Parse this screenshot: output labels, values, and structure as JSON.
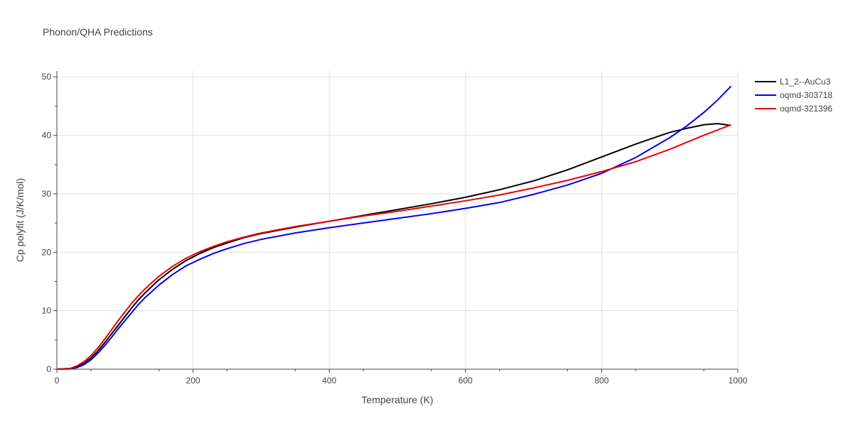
{
  "chart_data": {
    "type": "line",
    "title": "Phonon/QHA Predictions",
    "xlabel": "Temperature (K)",
    "ylabel": "Cp polyfit (J/K/mol)",
    "xlim": [
      0,
      1000
    ],
    "ylim": [
      0,
      51
    ],
    "xticks": [
      0,
      200,
      400,
      600,
      800,
      1000
    ],
    "yticks": [
      0,
      10,
      20,
      30,
      40,
      50
    ],
    "grid": true,
    "legend_position": "top-right",
    "series": [
      {
        "name": "L1_2--AuCu3",
        "color": "#000000",
        "x": [
          0,
          20,
          30,
          40,
          50,
          60,
          70,
          80,
          90,
          100,
          110,
          120,
          130,
          150,
          170,
          190,
          210,
          230,
          250,
          275,
          300,
          350,
          400,
          450,
          500,
          550,
          600,
          650,
          700,
          750,
          800,
          850,
          900,
          925,
          950,
          970,
          990
        ],
        "y": [
          0,
          0.1,
          0.4,
          1.0,
          1.9,
          3.1,
          4.5,
          6.0,
          7.5,
          9.0,
          10.5,
          11.9,
          13.1,
          15.3,
          17.1,
          18.6,
          19.8,
          20.8,
          21.6,
          22.5,
          23.2,
          24.3,
          25.3,
          26.3,
          27.3,
          28.3,
          29.4,
          30.7,
          32.2,
          34.1,
          36.3,
          38.5,
          40.5,
          41.2,
          41.8,
          42.0,
          41.7
        ]
      },
      {
        "name": "oqmd-303718",
        "color": "#0000ee",
        "x": [
          0,
          20,
          30,
          40,
          50,
          60,
          70,
          80,
          90,
          100,
          110,
          120,
          130,
          150,
          170,
          190,
          210,
          230,
          250,
          275,
          300,
          350,
          400,
          450,
          500,
          550,
          600,
          650,
          700,
          750,
          800,
          850,
          900,
          925,
          950,
          970,
          990
        ],
        "y": [
          0,
          0.05,
          0.3,
          0.8,
          1.6,
          2.7,
          4.0,
          5.4,
          6.9,
          8.3,
          9.7,
          11.1,
          12.3,
          14.4,
          16.2,
          17.7,
          18.8,
          19.8,
          20.6,
          21.5,
          22.2,
          23.3,
          24.2,
          25.0,
          25.8,
          26.6,
          27.5,
          28.5,
          29.9,
          31.5,
          33.5,
          36.2,
          39.6,
          41.6,
          43.9,
          46.0,
          48.4
        ]
      },
      {
        "name": "oqmd-321396",
        "color": "#ee0000",
        "x": [
          0,
          20,
          30,
          40,
          50,
          60,
          70,
          80,
          90,
          100,
          110,
          120,
          130,
          150,
          170,
          190,
          210,
          230,
          250,
          275,
          300,
          350,
          400,
          450,
          500,
          550,
          600,
          650,
          700,
          750,
          800,
          850,
          900,
          925,
          950,
          970,
          990
        ],
        "y": [
          0,
          0.15,
          0.6,
          1.3,
          2.3,
          3.6,
          5.1,
          6.7,
          8.3,
          9.8,
          11.3,
          12.6,
          13.8,
          15.9,
          17.6,
          19.0,
          20.1,
          21.0,
          21.8,
          22.6,
          23.3,
          24.4,
          25.3,
          26.2,
          27.0,
          27.9,
          28.8,
          29.8,
          31.0,
          32.3,
          33.8,
          35.5,
          37.6,
          38.8,
          40.0,
          40.9,
          41.8
        ]
      }
    ]
  }
}
